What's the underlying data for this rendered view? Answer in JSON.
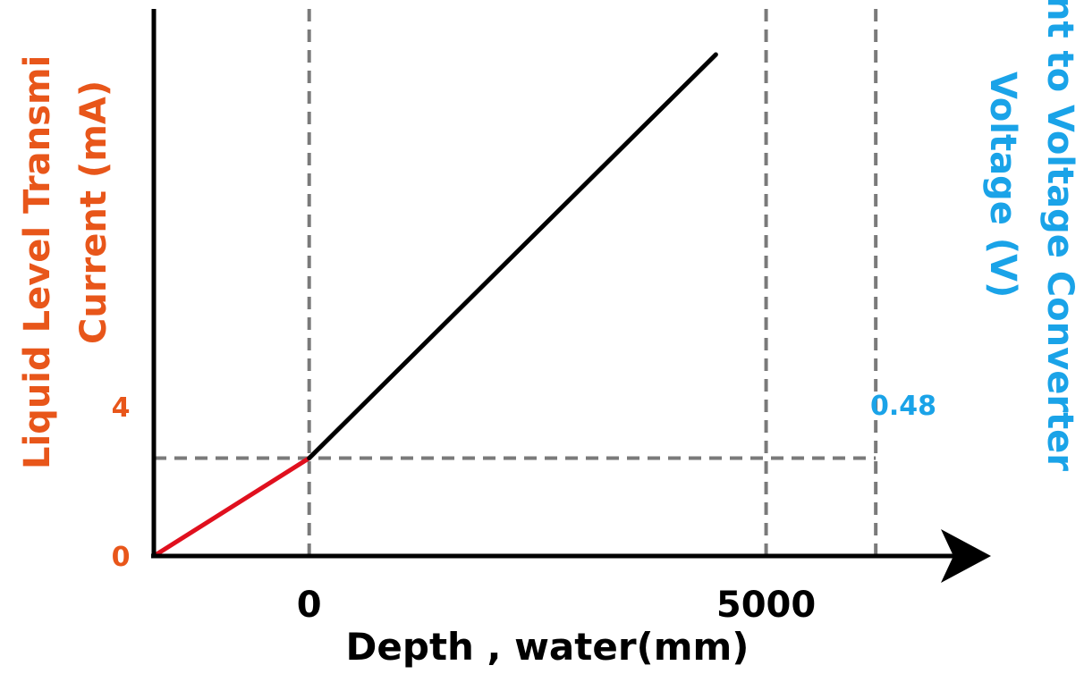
{
  "chart_data": {
    "type": "line",
    "xlabel": "Depth , water(mm)",
    "ylabel_left": "Liquid Level Transmi",
    "ylabel_left_line2": "Current (mA)",
    "ylabel_right": "nt to Voltage Converter",
    "ylabel_right_line2": "Voltage (V)",
    "x_ticks": [
      "0",
      "5000"
    ],
    "y_left_ticks": [
      "0",
      "4"
    ],
    "y_right_ticks": [
      "0.48"
    ],
    "series": [
      {
        "color": "#e0101e",
        "points": [
          {
            "x": -1700,
            "y": 0
          },
          {
            "x": 0,
            "y": 4
          }
        ]
      },
      {
        "color": "#000000",
        "points": [
          {
            "x": 0,
            "y": 4
          },
          {
            "x": 4450,
            "y": 20.5
          }
        ]
      }
    ],
    "xlim": [
      -1700,
      7500
    ],
    "ylim": [
      0,
      22
    ],
    "grid": "dashed reference lines at x=0, x=5000, x=6200 and y=4",
    "colors": {
      "left_axis": "#e8561a",
      "right_axis": "#1aa3e8",
      "axis": "#000000",
      "grid": "#7a7a7a"
    }
  }
}
